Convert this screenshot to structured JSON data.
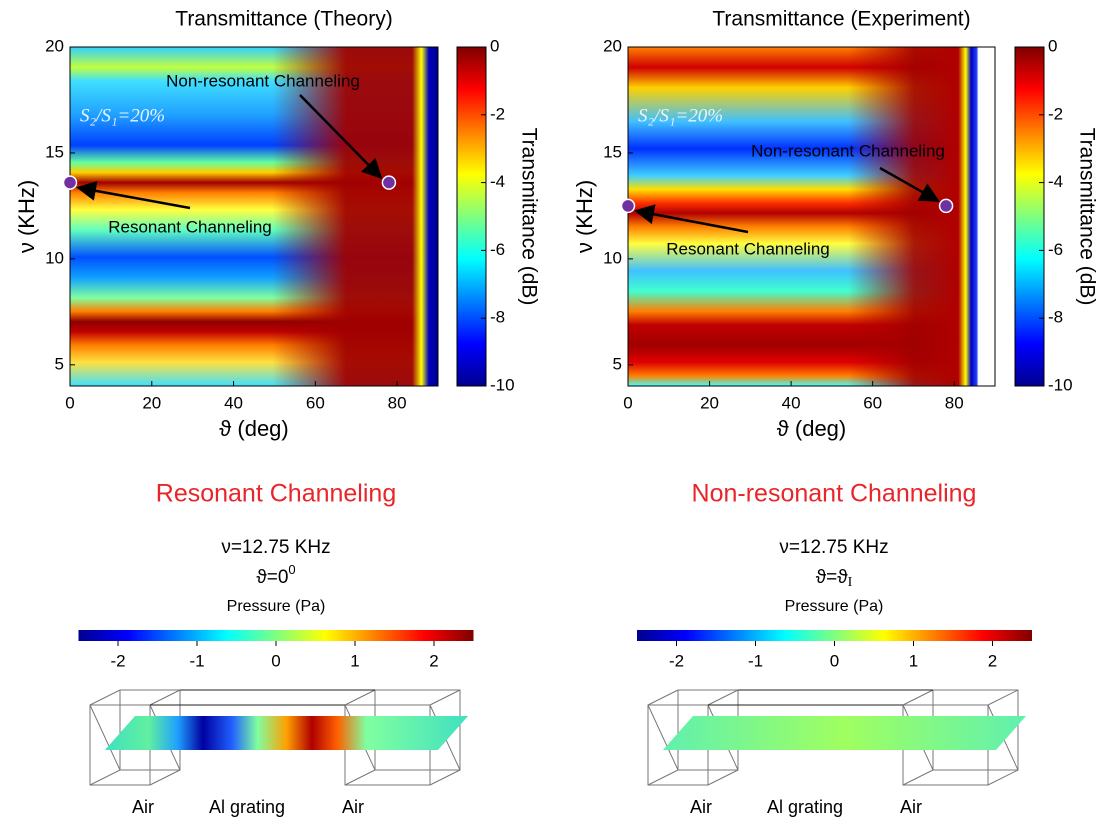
{
  "chart_data": [
    {
      "type": "heatmap",
      "title": "Transmittance (Theory)",
      "x_label": "ϑ (deg)",
      "y_label": "ν (KHz)",
      "xlim": [
        0,
        90
      ],
      "xticks": [
        0,
        20,
        40,
        60,
        80
      ],
      "ylim": [
        4,
        20
      ],
      "yticks": [
        5,
        10,
        15,
        20
      ],
      "inset_text": "S₂/S₁=20%",
      "colorbar": {
        "label": "Transmittance (dB)",
        "lim": [
          -10,
          0
        ],
        "ticks": [
          -10,
          -8,
          -6,
          -4,
          -2,
          0
        ]
      },
      "annotations": [
        {
          "text": "Non-resonant Channeling",
          "x": 78,
          "y": 13.6
        },
        {
          "text": "Resonant Channeling",
          "x": 0,
          "y": 13.6
        }
      ]
    },
    {
      "type": "heatmap",
      "title": "Transmittance (Experiment)",
      "x_label": "ϑ (deg)",
      "y_label": "ν (KHz)",
      "xlim": [
        0,
        90
      ],
      "xticks": [
        0,
        20,
        40,
        60,
        80
      ],
      "ylim": [
        4,
        20
      ],
      "yticks": [
        5,
        10,
        15,
        20
      ],
      "inset_text": "S₂/S₁=20%",
      "colorbar": {
        "label": "Transmittance (dB)",
        "lim": [
          -10,
          0
        ],
        "ticks": [
          -10,
          -8,
          -6,
          -4,
          -2,
          0
        ]
      },
      "annotations": [
        {
          "text": "Non-resonant Channeling",
          "x": 78,
          "y": 12.5
        },
        {
          "text": "Resonant Channeling",
          "x": 0,
          "y": 12.5
        }
      ]
    },
    {
      "type": "field",
      "title": "Resonant Channeling",
      "frequency": "ν=12.75 KHz",
      "angle": {
        "base": "ϑ=0",
        "sup": "0"
      },
      "colorbar": {
        "label": "Pressure (Pa)",
        "lim": [
          -2.5,
          2.5
        ],
        "ticks": [
          -2,
          -1,
          0,
          1,
          2
        ]
      },
      "region_labels": [
        "Air",
        "Al grating",
        "Air"
      ]
    },
    {
      "type": "field",
      "title": "Non-resonant Channeling",
      "frequency": "ν=12.75 KHz",
      "angle": {
        "base": "ϑ=ϑ",
        "sub": "I"
      },
      "colorbar": {
        "label": "Pressure (Pa)",
        "lim": [
          -2.5,
          2.5
        ],
        "ticks": [
          -2,
          -1,
          0,
          1,
          2
        ]
      },
      "region_labels": [
        "Air",
        "Al grating",
        "Air"
      ]
    }
  ]
}
